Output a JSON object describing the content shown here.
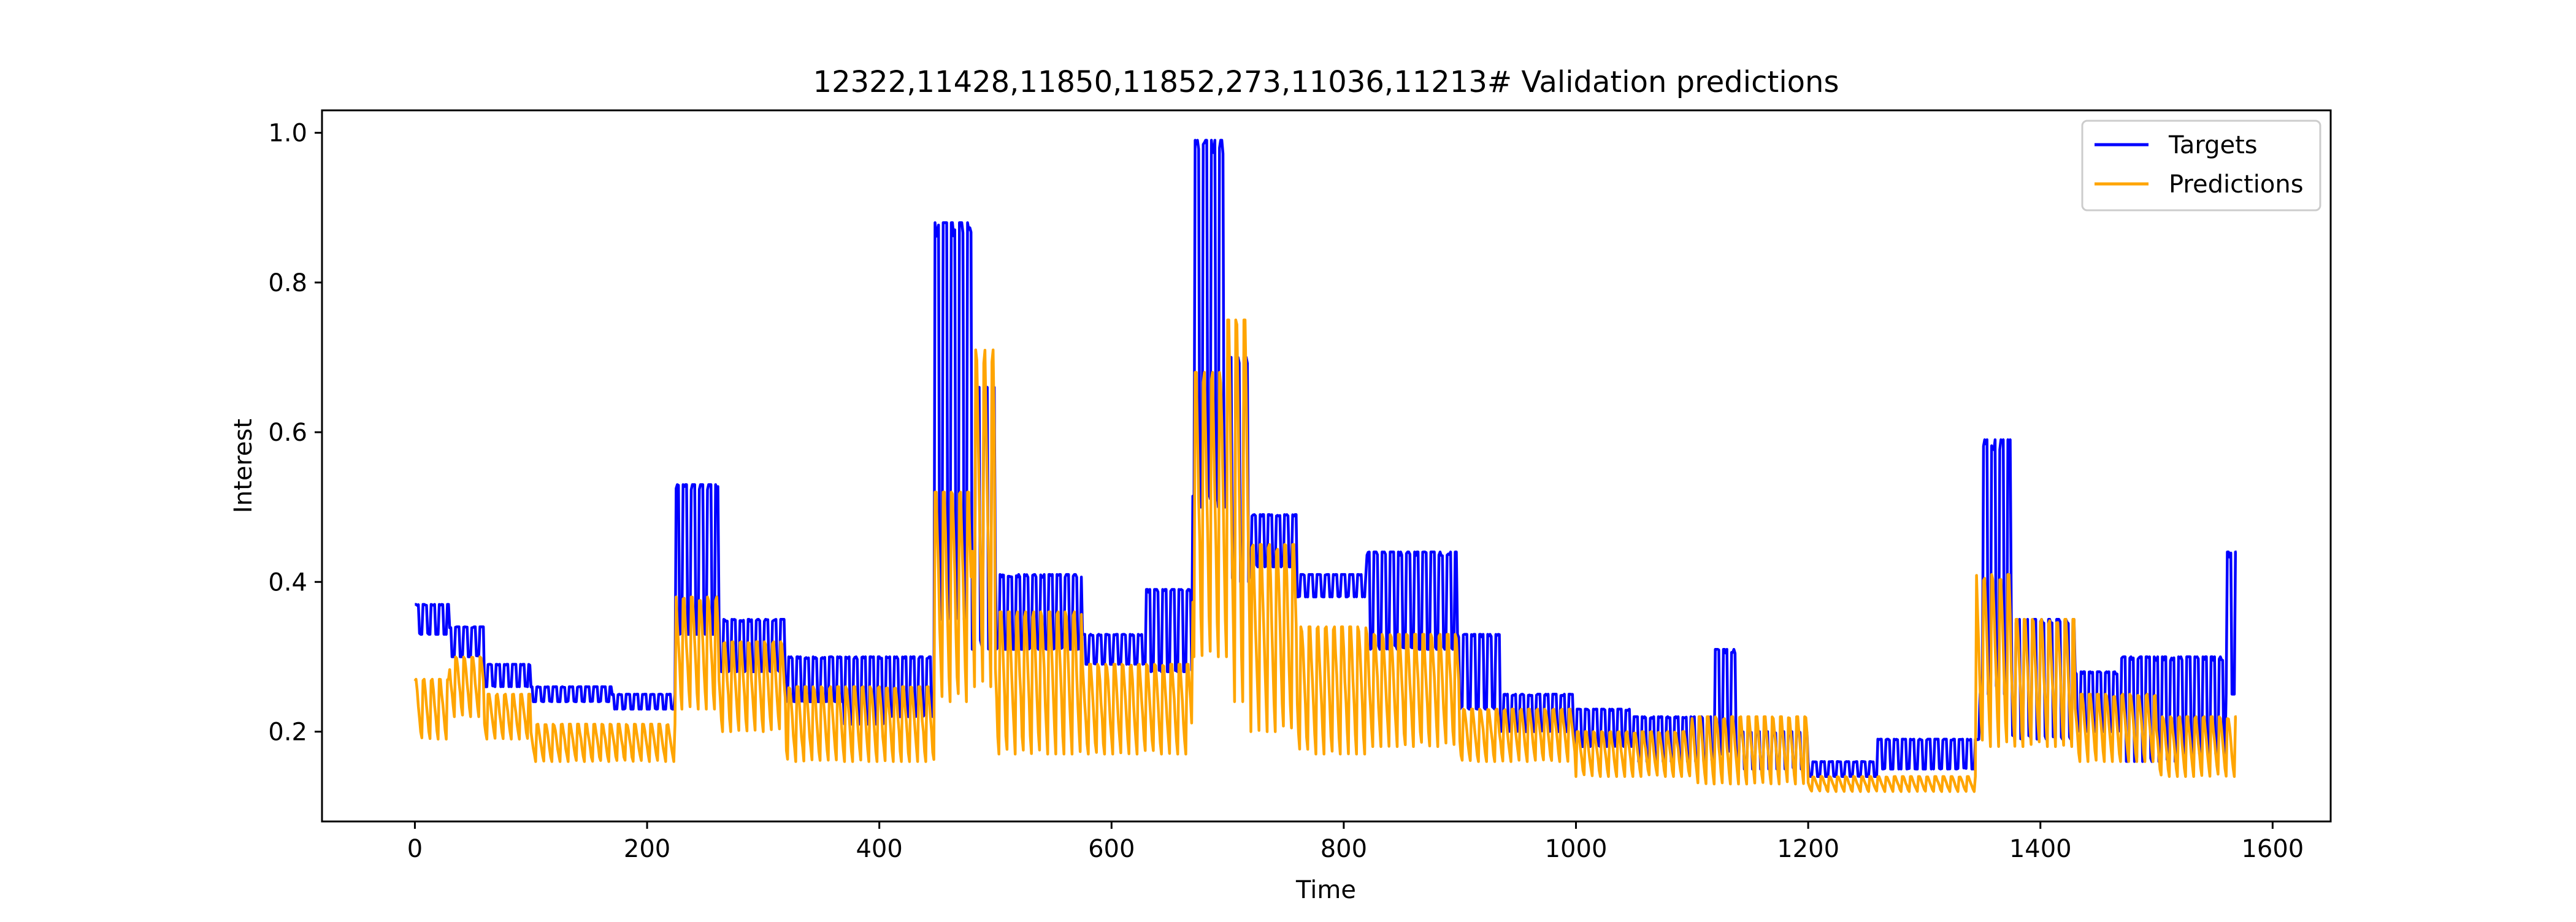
{
  "chart_data": {
    "type": "line",
    "title": "12322,11428,11850,11852,273,11036,11213# Validation predictions",
    "xlabel": "Time",
    "ylabel": "Interest",
    "xlim": [
      -80,
      1650
    ],
    "ylim": [
      0.08,
      1.03
    ],
    "x_ticks": [
      0,
      200,
      400,
      600,
      800,
      1000,
      1200,
      1400,
      1600
    ],
    "y_ticks": [
      0.2,
      0.4,
      0.6,
      0.8,
      1.0
    ],
    "x_tick_labels": [
      "0",
      "200",
      "400",
      "600",
      "800",
      "1000",
      "1200",
      "1400",
      "1600"
    ],
    "y_tick_labels": [
      "0.2",
      "0.4",
      "0.6",
      "0.8",
      "1.0"
    ],
    "grid": false,
    "legend_position": "top-right",
    "series": [
      {
        "name": "Targets",
        "color": "#0000ff",
        "regimes": [
          {
            "x0": 0,
            "x1": 30,
            "low": 0.33,
            "high": 0.37
          },
          {
            "x0": 30,
            "x1": 60,
            "low": 0.3,
            "high": 0.34
          },
          {
            "x0": 60,
            "x1": 100,
            "low": 0.26,
            "high": 0.29
          },
          {
            "x0": 100,
            "x1": 170,
            "low": 0.24,
            "high": 0.26
          },
          {
            "x0": 170,
            "x1": 225,
            "low": 0.23,
            "high": 0.25
          },
          {
            "x0": 225,
            "x1": 262,
            "low": 0.33,
            "high": 0.53
          },
          {
            "x0": 262,
            "x1": 320,
            "low": 0.28,
            "high": 0.35
          },
          {
            "x0": 320,
            "x1": 370,
            "low": 0.24,
            "high": 0.3
          },
          {
            "x0": 370,
            "x1": 410,
            "low": 0.21,
            "high": 0.3
          },
          {
            "x0": 410,
            "x1": 448,
            "low": 0.22,
            "high": 0.3
          },
          {
            "x0": 448,
            "x1": 480,
            "low": 0.35,
            "high": 0.88
          },
          {
            "x0": 480,
            "x1": 500,
            "low": 0.31,
            "high": 0.66
          },
          {
            "x0": 500,
            "x1": 575,
            "low": 0.31,
            "high": 0.41
          },
          {
            "x0": 575,
            "x1": 630,
            "low": 0.29,
            "high": 0.33
          },
          {
            "x0": 630,
            "x1": 670,
            "low": 0.28,
            "high": 0.39
          },
          {
            "x0": 670,
            "x1": 700,
            "low": 0.5,
            "high": 0.99
          },
          {
            "x0": 700,
            "x1": 720,
            "low": 0.4,
            "high": 0.7
          },
          {
            "x0": 720,
            "x1": 760,
            "low": 0.42,
            "high": 0.49
          },
          {
            "x0": 760,
            "x1": 820,
            "low": 0.38,
            "high": 0.41
          },
          {
            "x0": 820,
            "x1": 898,
            "low": 0.31,
            "high": 0.44
          },
          {
            "x0": 898,
            "x1": 935,
            "low": 0.23,
            "high": 0.33
          },
          {
            "x0": 935,
            "x1": 1000,
            "low": 0.2,
            "high": 0.25
          },
          {
            "x0": 1000,
            "x1": 1050,
            "low": 0.18,
            "high": 0.23
          },
          {
            "x0": 1050,
            "x1": 1120,
            "low": 0.16,
            "high": 0.22
          },
          {
            "x0": 1120,
            "x1": 1140,
            "low": 0.17,
            "high": 0.31
          },
          {
            "x0": 1140,
            "x1": 1200,
            "low": 0.15,
            "high": 0.2
          },
          {
            "x0": 1200,
            "x1": 1260,
            "low": 0.14,
            "high": 0.16
          },
          {
            "x0": 1260,
            "x1": 1348,
            "low": 0.15,
            "high": 0.19
          },
          {
            "x0": 1348,
            "x1": 1375,
            "low": 0.25,
            "high": 0.59
          },
          {
            "x0": 1375,
            "x1": 1430,
            "low": 0.19,
            "high": 0.35
          },
          {
            "x0": 1430,
            "x1": 1470,
            "low": 0.2,
            "high": 0.28
          },
          {
            "x0": 1470,
            "x1": 1520,
            "low": 0.16,
            "high": 0.3
          },
          {
            "x0": 1520,
            "x1": 1560,
            "low": 0.17,
            "high": 0.3
          },
          {
            "x0": 1560,
            "x1": 1570,
            "low": 0.25,
            "high": 0.44
          }
        ]
      },
      {
        "name": "Predictions",
        "color": "#ffa500",
        "regimes": [
          {
            "x0": 0,
            "x1": 30,
            "low": 0.19,
            "high": 0.27
          },
          {
            "x0": 30,
            "x1": 60,
            "low": 0.22,
            "high": 0.3
          },
          {
            "x0": 60,
            "x1": 100,
            "low": 0.19,
            "high": 0.25
          },
          {
            "x0": 100,
            "x1": 225,
            "low": 0.16,
            "high": 0.21
          },
          {
            "x0": 225,
            "x1": 262,
            "low": 0.23,
            "high": 0.38
          },
          {
            "x0": 262,
            "x1": 320,
            "low": 0.2,
            "high": 0.32
          },
          {
            "x0": 320,
            "x1": 448,
            "low": 0.16,
            "high": 0.26
          },
          {
            "x0": 448,
            "x1": 480,
            "low": 0.24,
            "high": 0.52
          },
          {
            "x0": 480,
            "x1": 500,
            "low": 0.26,
            "high": 0.71
          },
          {
            "x0": 500,
            "x1": 575,
            "low": 0.17,
            "high": 0.36
          },
          {
            "x0": 575,
            "x1": 670,
            "low": 0.17,
            "high": 0.29
          },
          {
            "x0": 670,
            "x1": 700,
            "low": 0.3,
            "high": 0.68
          },
          {
            "x0": 700,
            "x1": 720,
            "low": 0.24,
            "high": 0.75
          },
          {
            "x0": 720,
            "x1": 760,
            "low": 0.2,
            "high": 0.45
          },
          {
            "x0": 760,
            "x1": 820,
            "low": 0.17,
            "high": 0.34
          },
          {
            "x0": 820,
            "x1": 900,
            "low": 0.18,
            "high": 0.33
          },
          {
            "x0": 900,
            "x1": 1000,
            "low": 0.16,
            "high": 0.23
          },
          {
            "x0": 1000,
            "x1": 1100,
            "low": 0.14,
            "high": 0.2
          },
          {
            "x0": 1100,
            "x1": 1200,
            "low": 0.13,
            "high": 0.22
          },
          {
            "x0": 1200,
            "x1": 1345,
            "low": 0.12,
            "high": 0.14
          },
          {
            "x0": 1345,
            "x1": 1375,
            "low": 0.18,
            "high": 0.41
          },
          {
            "x0": 1375,
            "x1": 1430,
            "low": 0.18,
            "high": 0.35
          },
          {
            "x0": 1430,
            "x1": 1500,
            "low": 0.16,
            "high": 0.25
          },
          {
            "x0": 1500,
            "x1": 1570,
            "low": 0.14,
            "high": 0.22
          }
        ]
      }
    ]
  }
}
